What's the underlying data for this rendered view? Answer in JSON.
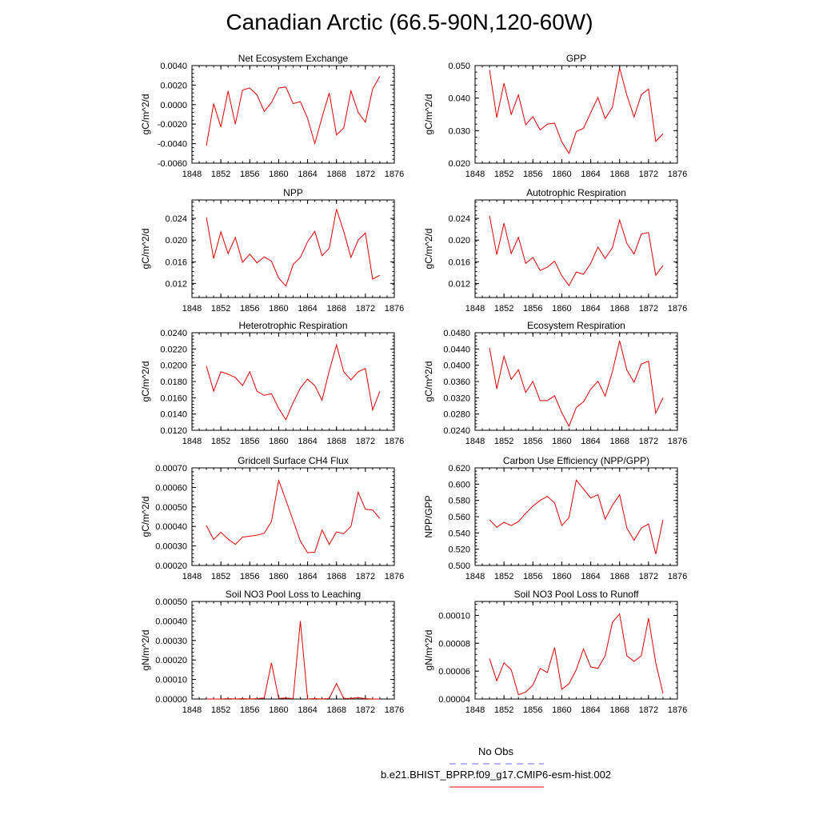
{
  "title": "Canadian Arctic (66.5-90N,120-60W)",
  "legend": {
    "obs_label": "No Obs",
    "obs_color": "#6a6aff",
    "model_label": "b.e21.BHIST_BPRP.f09_g17.CMIP6-esm-hist.002",
    "model_color": "#e00000"
  },
  "chart_data": [
    {
      "type": "line",
      "title": "Net Ecosystem Exchange",
      "ylabel": "gC/m^2/d",
      "xlim": [
        1848,
        1876
      ],
      "xticks": [
        "1848",
        "1852",
        "1856",
        "1860",
        "1864",
        "1868",
        "1872",
        "1876"
      ],
      "ylim": [
        -0.006,
        0.004
      ],
      "yticks": [
        "-0.0060",
        "-0.0040",
        "-0.0020",
        "0.0000",
        "0.0020",
        "0.0040"
      ],
      "x": [
        1850,
        1851,
        1852,
        1853,
        1854,
        1855,
        1856,
        1857,
        1858,
        1859,
        1860,
        1861,
        1862,
        1863,
        1864,
        1865,
        1866,
        1867,
        1868,
        1869,
        1870,
        1871,
        1872,
        1873,
        1874
      ],
      "series": [
        {
          "values": [
            -0.0042,
            0.0001,
            -0.0023,
            0.0014,
            -0.002,
            0.0015,
            0.0017,
            0.001,
            -0.0007,
            0.0002,
            0.0017,
            0.0018,
            0.0001,
            0.0003,
            -0.0014,
            -0.004,
            -0.0013,
            0.0012,
            -0.0031,
            -0.0024,
            0.0014,
            -0.0008,
            -0.0018,
            0.0016,
            0.0029
          ]
        }
      ]
    },
    {
      "type": "line",
      "title": "GPP",
      "ylabel": "gC/m^2/d",
      "xlim": [
        1848,
        1876
      ],
      "xticks": [
        "1848",
        "1852",
        "1856",
        "1860",
        "1864",
        "1868",
        "1872",
        "1876"
      ],
      "ylim": [
        0.02,
        0.05
      ],
      "yticks": [
        "0.020",
        "0.030",
        "0.040",
        "0.050"
      ],
      "x": [
        1850,
        1851,
        1852,
        1853,
        1854,
        1855,
        1856,
        1857,
        1858,
        1859,
        1860,
        1861,
        1862,
        1863,
        1864,
        1865,
        1866,
        1867,
        1868,
        1869,
        1870,
        1871,
        1872,
        1873,
        1874
      ],
      "series": [
        {
          "values": [
            0.0487,
            0.034,
            0.0446,
            0.035,
            0.041,
            0.0318,
            0.0343,
            0.0302,
            0.032,
            0.0323,
            0.0265,
            0.023,
            0.0297,
            0.0307,
            0.0355,
            0.0402,
            0.0337,
            0.0372,
            0.0493,
            0.0409,
            0.0342,
            0.041,
            0.0428,
            0.0267,
            0.029
          ]
        }
      ]
    },
    {
      "type": "line",
      "title": "NPP",
      "ylabel": "gC/m^2/d",
      "xlim": [
        1848,
        1876
      ],
      "xticks": [
        "1848",
        "1852",
        "1856",
        "1860",
        "1864",
        "1868",
        "1872",
        "1876"
      ],
      "ylim": [
        0.0094,
        0.0274
      ],
      "yticks": [
        "0.012",
        "0.016",
        "0.020",
        "0.024"
      ],
      "x": [
        1850,
        1851,
        1852,
        1853,
        1854,
        1855,
        1856,
        1857,
        1858,
        1859,
        1860,
        1861,
        1862,
        1863,
        1864,
        1865,
        1866,
        1867,
        1868,
        1869,
        1870,
        1871,
        1872,
        1873,
        1874
      ],
      "series": [
        {
          "values": [
            0.0242,
            0.0166,
            0.0215,
            0.0175,
            0.0205,
            0.0159,
            0.0174,
            0.0158,
            0.0169,
            0.0161,
            0.013,
            0.0115,
            0.0155,
            0.0168,
            0.0197,
            0.0216,
            0.0171,
            0.0185,
            0.0257,
            0.0216,
            0.0168,
            0.02,
            0.0213,
            0.0128,
            0.0135
          ]
        }
      ]
    },
    {
      "type": "line",
      "title": "Autotrophic Respiration",
      "ylabel": "gC/m^2/d",
      "xlim": [
        1848,
        1876
      ],
      "xticks": [
        "1848",
        "1852",
        "1856",
        "1860",
        "1864",
        "1868",
        "1872",
        "1876"
      ],
      "ylim": [
        0.0094,
        0.0274
      ],
      "yticks": [
        "0.012",
        "0.016",
        "0.020",
        "0.024"
      ],
      "x": [
        1850,
        1851,
        1852,
        1853,
        1854,
        1855,
        1856,
        1857,
        1858,
        1859,
        1860,
        1861,
        1862,
        1863,
        1864,
        1865,
        1866,
        1867,
        1868,
        1869,
        1870,
        1871,
        1872,
        1873,
        1874
      ],
      "series": [
        {
          "values": [
            0.0245,
            0.0173,
            0.0231,
            0.0175,
            0.0205,
            0.0157,
            0.0168,
            0.0144,
            0.015,
            0.0161,
            0.0134,
            0.0116,
            0.0141,
            0.0137,
            0.0157,
            0.0187,
            0.0166,
            0.0186,
            0.0237,
            0.0194,
            0.0174,
            0.0211,
            0.0214,
            0.0135,
            0.0153
          ]
        }
      ]
    },
    {
      "type": "line",
      "title": "Heterotrophic Respiration",
      "ylabel": "gC/m^2/d",
      "xlim": [
        1848,
        1876
      ],
      "xticks": [
        "1848",
        "1852",
        "1856",
        "1860",
        "1864",
        "1868",
        "1872",
        "1876"
      ],
      "ylim": [
        0.012,
        0.024
      ],
      "yticks": [
        "0.0120",
        "0.0140",
        "0.0160",
        "0.0180",
        "0.0200",
        "0.0220",
        "0.0240"
      ],
      "x": [
        1850,
        1851,
        1852,
        1853,
        1854,
        1855,
        1856,
        1857,
        1858,
        1859,
        1860,
        1861,
        1862,
        1863,
        1864,
        1865,
        1866,
        1867,
        1868,
        1869,
        1870,
        1871,
        1872,
        1873,
        1874
      ],
      "series": [
        {
          "values": [
            0.0199,
            0.0168,
            0.0192,
            0.0189,
            0.0185,
            0.0175,
            0.0192,
            0.0168,
            0.0163,
            0.0165,
            0.0147,
            0.0133,
            0.0154,
            0.0172,
            0.0183,
            0.0175,
            0.0157,
            0.0193,
            0.0225,
            0.0192,
            0.0182,
            0.0192,
            0.0196,
            0.0145,
            0.0168
          ]
        }
      ]
    },
    {
      "type": "line",
      "title": "Ecosystem Respiration",
      "ylabel": "gC/m^2/d",
      "xlim": [
        1848,
        1876
      ],
      "xticks": [
        "1848",
        "1852",
        "1856",
        "1860",
        "1864",
        "1868",
        "1872",
        "1876"
      ],
      "ylim": [
        0.024,
        0.048
      ],
      "yticks": [
        "0.0240",
        "0.0280",
        "0.0320",
        "0.0360",
        "0.0400",
        "0.0440",
        "0.0480"
      ],
      "x": [
        1850,
        1851,
        1852,
        1853,
        1854,
        1855,
        1856,
        1857,
        1858,
        1859,
        1860,
        1861,
        1862,
        1863,
        1864,
        1865,
        1866,
        1867,
        1868,
        1869,
        1870,
        1871,
        1872,
        1873,
        1874
      ],
      "series": [
        {
          "values": [
            0.0443,
            0.0342,
            0.0422,
            0.0365,
            0.0389,
            0.0333,
            0.036,
            0.0313,
            0.0313,
            0.0325,
            0.0283,
            0.025,
            0.0296,
            0.031,
            0.0341,
            0.0361,
            0.0324,
            0.0384,
            0.046,
            0.0388,
            0.0358,
            0.0403,
            0.041,
            0.0282,
            0.032
          ]
        }
      ]
    },
    {
      "type": "line",
      "title": "Gridcell Surface CH4 Flux",
      "ylabel": "gC/m^2/d",
      "xlim": [
        1848,
        1876
      ],
      "xticks": [
        "1848",
        "1852",
        "1856",
        "1860",
        "1864",
        "1868",
        "1872",
        "1876"
      ],
      "ylim": [
        0.0002,
        0.0007
      ],
      "yticks": [
        "0.00020",
        "0.00030",
        "0.00040",
        "0.00050",
        "0.00060",
        "0.00070"
      ],
      "x": [
        1850,
        1851,
        1852,
        1853,
        1854,
        1855,
        1856,
        1857,
        1858,
        1859,
        1860,
        1861,
        1862,
        1863,
        1864,
        1865,
        1866,
        1867,
        1868,
        1869,
        1870,
        1871,
        1872,
        1873,
        1874
      ],
      "series": [
        {
          "values": [
            0.000405,
            0.000333,
            0.00037,
            0.000335,
            0.000308,
            0.000345,
            0.00035,
            0.000355,
            0.000365,
            0.000425,
            0.000636,
            0.000535,
            0.00043,
            0.000325,
            0.000265,
            0.000268,
            0.000382,
            0.000308,
            0.000372,
            0.000363,
            0.0004,
            0.000575,
            0.000488,
            0.000485,
            0.00044
          ]
        }
      ]
    },
    {
      "type": "line",
      "title": "Carbon Use Efficiency (NPP/GPP)",
      "ylabel": "NPP/GPP",
      "xlim": [
        1848,
        1876
      ],
      "xticks": [
        "1848",
        "1852",
        "1856",
        "1860",
        "1864",
        "1868",
        "1872",
        "1876"
      ],
      "ylim": [
        0.5,
        0.62
      ],
      "yticks": [
        "0.500",
        "0.520",
        "0.540",
        "0.560",
        "0.580",
        "0.600",
        "0.620"
      ],
      "x": [
        1850,
        1851,
        1852,
        1853,
        1854,
        1855,
        1856,
        1857,
        1858,
        1859,
        1860,
        1861,
        1862,
        1863,
        1864,
        1865,
        1866,
        1867,
        1868,
        1869,
        1870,
        1871,
        1872,
        1873,
        1874
      ],
      "series": [
        {
          "values": [
            0.556,
            0.547,
            0.553,
            0.549,
            0.554,
            0.564,
            0.573,
            0.58,
            0.585,
            0.577,
            0.549,
            0.559,
            0.605,
            0.594,
            0.583,
            0.587,
            0.557,
            0.574,
            0.587,
            0.546,
            0.531,
            0.546,
            0.551,
            0.514,
            0.556
          ]
        }
      ]
    },
    {
      "type": "line",
      "title": "Soil NO3 Pool Loss to Leaching",
      "ylabel": "gN/m^2/d",
      "xlim": [
        1848,
        1876
      ],
      "xticks": [
        "1848",
        "1852",
        "1856",
        "1860",
        "1864",
        "1868",
        "1872",
        "1876"
      ],
      "ylim": [
        0,
        0.0005
      ],
      "yticks": [
        "0.00000",
        "0.00010",
        "0.00020",
        "0.00030",
        "0.00040",
        "0.00050"
      ],
      "x": [
        1850,
        1851,
        1852,
        1853,
        1854,
        1855,
        1856,
        1857,
        1858,
        1859,
        1860,
        1861,
        1862,
        1863,
        1864,
        1865,
        1866,
        1867,
        1868,
        1869,
        1870,
        1871,
        1872,
        1873,
        1874
      ],
      "series": [
        {
          "values": [
            0.0,
            0.0,
            0.0,
            2e-06,
            0.0,
            2e-06,
            0.0,
            2e-06,
            5e-06,
            0.000185,
            3e-06,
            5e-06,
            2e-06,
            0.0004,
            0.0,
            2e-06,
            0.0,
            3e-06,
            8e-05,
            3e-06,
            3e-06,
            7e-06,
            2e-06,
            0.0,
            0.0
          ]
        }
      ]
    },
    {
      "type": "line",
      "title": "Soil NO3 Pool Loss to Runoff",
      "ylabel": "gN/m^2/d",
      "xlim": [
        1848,
        1876
      ],
      "xticks": [
        "1848",
        "1852",
        "1856",
        "1860",
        "1864",
        "1868",
        "1872",
        "1876"
      ],
      "ylim": [
        4e-05,
        0.00011
      ],
      "yticks": [
        "0.00004",
        "0.00006",
        "0.00008",
        "0.00010"
      ],
      "x": [
        1850,
        1851,
        1852,
        1853,
        1854,
        1855,
        1856,
        1857,
        1858,
        1859,
        1860,
        1861,
        1862,
        1863,
        1864,
        1865,
        1866,
        1867,
        1868,
        1869,
        1870,
        1871,
        1872,
        1873,
        1874
      ],
      "series": [
        {
          "values": [
            6.9e-05,
            5.3e-05,
            6.6e-05,
            6.1e-05,
            4.3e-05,
            4.5e-05,
            5e-05,
            6.2e-05,
            5.9e-05,
            7.7e-05,
            4.7e-05,
            5.1e-05,
            6.1e-05,
            7.6e-05,
            6.3e-05,
            6.2e-05,
            7.1e-05,
            9.5e-05,
            0.000101,
            7.1e-05,
            6.7e-05,
            7.1e-05,
            9.8e-05,
            6.6e-05,
            4.4e-05
          ]
        }
      ]
    }
  ]
}
